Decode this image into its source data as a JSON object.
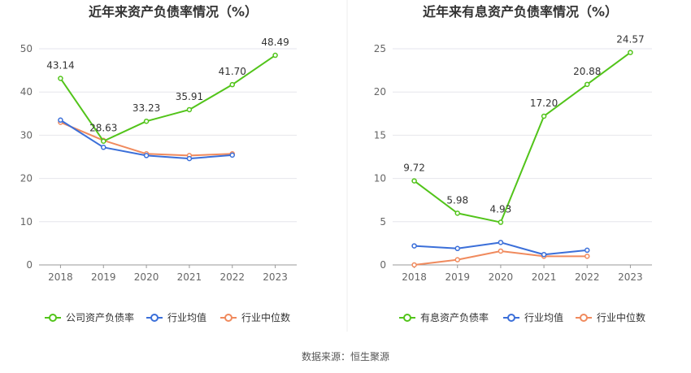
{
  "charts": [
    {
      "title": "近年来资产负债率情况（%）",
      "chart_data": {
        "type": "line",
        "categories": [
          "2018",
          "2019",
          "2020",
          "2021",
          "2022",
          "2023"
        ],
        "y_ticks": [
          0,
          10,
          20,
          30,
          40,
          50
        ],
        "ylim": [
          0,
          50
        ],
        "grid": true,
        "legend_position": "bottom",
        "series": [
          {
            "name": "公司资产负债率",
            "color": "#52c41a",
            "values": [
              43.14,
              28.63,
              33.23,
              35.91,
              41.7,
              48.49
            ],
            "labels": [
              "43.14",
              "28.63",
              "33.23",
              "35.91",
              "41.70",
              "48.49"
            ]
          },
          {
            "name": "行业均值",
            "color": "#3b6fd9",
            "values": [
              33.5,
              27.2,
              25.3,
              24.6,
              25.4,
              null
            ]
          },
          {
            "name": "行业中位数",
            "color": "#f08a5d",
            "values": [
              33.0,
              28.8,
              25.7,
              25.3,
              25.7,
              null
            ]
          }
        ]
      }
    },
    {
      "title": "近年来有息资产负债率情况（%）",
      "chart_data": {
        "type": "line",
        "categories": [
          "2018",
          "2019",
          "2020",
          "2021",
          "2022",
          "2023"
        ],
        "y_ticks": [
          0,
          5,
          10,
          15,
          20,
          25
        ],
        "ylim": [
          0,
          25
        ],
        "grid": true,
        "legend_position": "bottom",
        "series": [
          {
            "name": "有息资产负债率",
            "color": "#52c41a",
            "values": [
              9.72,
              5.98,
              4.93,
              17.2,
              20.88,
              24.57
            ],
            "labels": [
              "9.72",
              "5.98",
              "4.93",
              "17.20",
              "20.88",
              "24.57"
            ]
          },
          {
            "name": "行业均值",
            "color": "#3b6fd9",
            "values": [
              2.2,
              1.9,
              2.6,
              1.2,
              1.7,
              null
            ]
          },
          {
            "name": "行业中位数",
            "color": "#f08a5d",
            "values": [
              0.0,
              0.6,
              1.6,
              1.0,
              1.0,
              null
            ]
          }
        ]
      }
    }
  ],
  "source_text": "数据来源：恒生聚源"
}
